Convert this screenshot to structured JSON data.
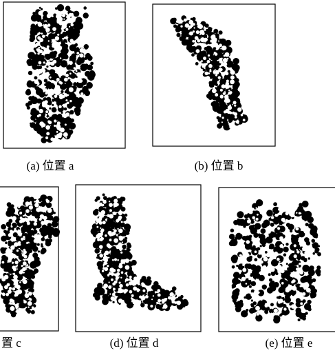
{
  "panels": [
    {
      "caption": "(a) 位置 a"
    },
    {
      "caption": "(b) 位置 b"
    },
    {
      "caption": "置 c"
    },
    {
      "caption": "(d) 位置 d"
    },
    {
      "caption": "(e) 位置 e"
    }
  ]
}
